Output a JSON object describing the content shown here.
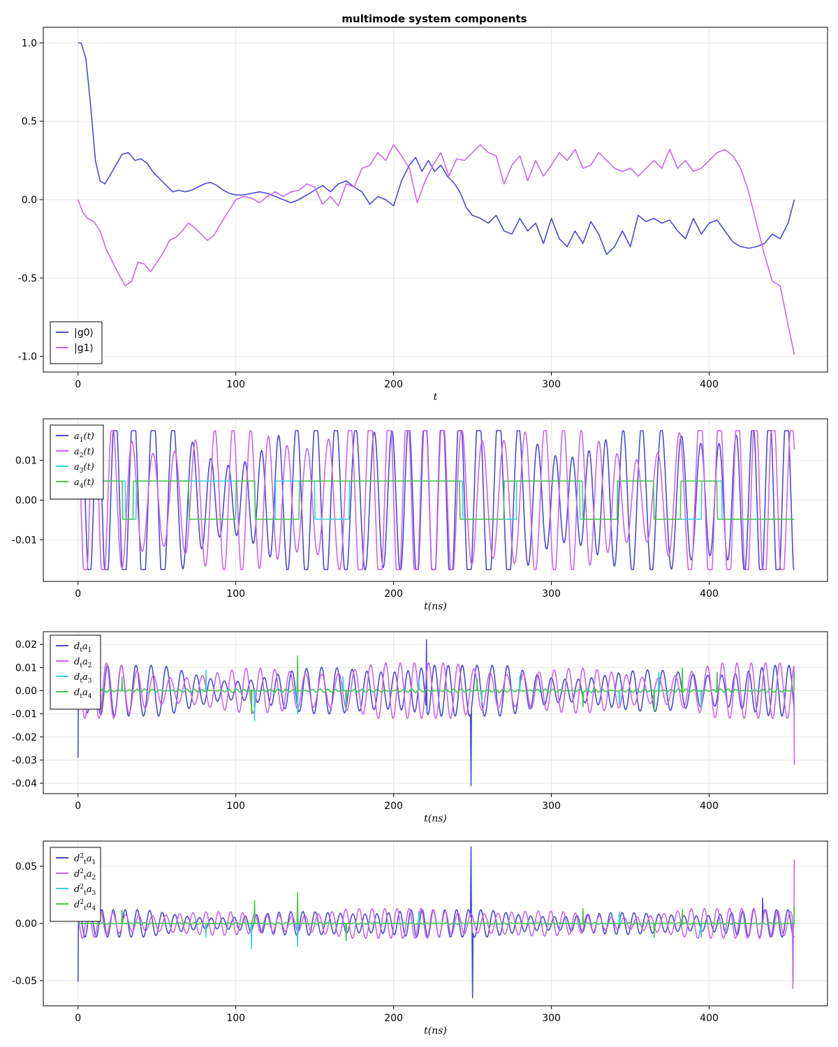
{
  "chart_data": [
    {
      "type": "line",
      "title": "multimode system components",
      "xlabel": "t",
      "xlim": [
        -22,
        475
      ],
      "ylim": [
        -1.1,
        1.1
      ],
      "xticks": [
        0,
        100,
        200,
        300,
        400
      ],
      "yticks": [
        1.0,
        0.5,
        0.0,
        -0.5,
        -1.0
      ],
      "ytick_labels": [
        "1.0",
        "0.5",
        "0.0",
        "-0.5",
        "-1.0"
      ],
      "grid": true,
      "legend_position": "bottom-left",
      "series": [
        {
          "name": "|g0⟩",
          "color": "#4a4ad4",
          "x": [
            0,
            2,
            5,
            8,
            11,
            14,
            17,
            20,
            24,
            28,
            32,
            36,
            40,
            44,
            48,
            52,
            56,
            60,
            64,
            68,
            72,
            76,
            80,
            84,
            88,
            92,
            96,
            100,
            105,
            110,
            115,
            120,
            125,
            130,
            135,
            140,
            145,
            150,
            155,
            160,
            165,
            170,
            175,
            180,
            185,
            190,
            195,
            200,
            205,
            210,
            214,
            218,
            222,
            226,
            230,
            234,
            238,
            242,
            246,
            250,
            255,
            260,
            265,
            270,
            275,
            280,
            285,
            290,
            295,
            300,
            305,
            310,
            315,
            320,
            325,
            330,
            335,
            340,
            345,
            350,
            355,
            360,
            365,
            370,
            375,
            380,
            385,
            390,
            395,
            400,
            405,
            410,
            415,
            420,
            425,
            430,
            435,
            440,
            445,
            450,
            454
          ],
          "y": [
            1.0,
            1.0,
            0.9,
            0.6,
            0.25,
            0.12,
            0.1,
            0.15,
            0.22,
            0.29,
            0.3,
            0.25,
            0.26,
            0.23,
            0.17,
            0.13,
            0.09,
            0.05,
            0.06,
            0.05,
            0.06,
            0.08,
            0.1,
            0.11,
            0.09,
            0.06,
            0.04,
            0.03,
            0.03,
            0.04,
            0.05,
            0.04,
            0.02,
            0.0,
            -0.02,
            0.0,
            0.03,
            0.06,
            0.09,
            0.05,
            0.1,
            0.12,
            0.08,
            0.05,
            -0.03,
            0.02,
            0.0,
            -0.04,
            0.12,
            0.22,
            0.27,
            0.18,
            0.25,
            0.18,
            0.22,
            0.15,
            0.11,
            0.05,
            -0.05,
            -0.1,
            -0.12,
            -0.15,
            -0.1,
            -0.2,
            -0.22,
            -0.12,
            -0.2,
            -0.15,
            -0.28,
            -0.12,
            -0.25,
            -0.3,
            -0.2,
            -0.28,
            -0.14,
            -0.22,
            -0.35,
            -0.3,
            -0.2,
            -0.3,
            -0.1,
            -0.14,
            -0.12,
            -0.15,
            -0.13,
            -0.2,
            -0.25,
            -0.12,
            -0.22,
            -0.15,
            -0.13,
            -0.2,
            -0.27,
            -0.3,
            -0.31,
            -0.3,
            -0.28,
            -0.22,
            -0.25,
            -0.15,
            0.0
          ]
        },
        {
          "name": "|g1⟩",
          "color": "#c766f0",
          "x": [
            0,
            3,
            6,
            10,
            14,
            18,
            22,
            26,
            30,
            34,
            38,
            42,
            46,
            50,
            54,
            58,
            62,
            66,
            70,
            74,
            78,
            82,
            86,
            90,
            95,
            100,
            105,
            110,
            115,
            120,
            125,
            130,
            135,
            140,
            145,
            150,
            155,
            160,
            165,
            170,
            175,
            180,
            185,
            190,
            195,
            200,
            205,
            210,
            215,
            220,
            225,
            230,
            235,
            240,
            245,
            250,
            255,
            260,
            265,
            270,
            275,
            280,
            285,
            290,
            295,
            300,
            305,
            310,
            315,
            320,
            325,
            330,
            335,
            340,
            345,
            350,
            355,
            360,
            365,
            370,
            375,
            380,
            385,
            390,
            395,
            400,
            405,
            410,
            415,
            420,
            425,
            430,
            435,
            440,
            445,
            450,
            454
          ],
          "y": [
            0.0,
            -0.08,
            -0.12,
            -0.14,
            -0.2,
            -0.32,
            -0.4,
            -0.48,
            -0.55,
            -0.52,
            -0.4,
            -0.41,
            -0.46,
            -0.4,
            -0.34,
            -0.26,
            -0.24,
            -0.2,
            -0.15,
            -0.18,
            -0.22,
            -0.26,
            -0.23,
            -0.16,
            -0.08,
            0.0,
            0.02,
            0.01,
            -0.02,
            0.02,
            0.05,
            0.02,
            0.05,
            0.06,
            0.1,
            0.08,
            -0.03,
            0.02,
            -0.04,
            0.1,
            0.08,
            0.2,
            0.22,
            0.3,
            0.25,
            0.35,
            0.28,
            0.2,
            -0.02,
            0.12,
            0.22,
            0.3,
            0.15,
            0.26,
            0.25,
            0.3,
            0.35,
            0.3,
            0.28,
            0.1,
            0.22,
            0.28,
            0.12,
            0.25,
            0.15,
            0.22,
            0.3,
            0.25,
            0.32,
            0.2,
            0.22,
            0.3,
            0.25,
            0.2,
            0.18,
            0.2,
            0.15,
            0.2,
            0.25,
            0.2,
            0.32,
            0.2,
            0.25,
            0.18,
            0.2,
            0.25,
            0.3,
            0.32,
            0.28,
            0.2,
            0.05,
            -0.15,
            -0.35,
            -0.52,
            -0.55,
            -0.8,
            -0.99
          ]
        }
      ]
    },
    {
      "type": "line",
      "xlabel": "t(ns)",
      "xlim": [
        -22,
        475
      ],
      "ylim": [
        -0.0205,
        0.0205
      ],
      "xticks": [
        0,
        100,
        200,
        300,
        400
      ],
      "yticks": [
        0.01,
        0.0,
        -0.01
      ],
      "ytick_labels": [
        "0.01",
        "0.00",
        "-0.01"
      ],
      "grid": true,
      "legend_position": "top-left",
      "series": [
        {
          "name": "a1(t)",
          "label_main": "a",
          "label_sub": "1",
          "label_tail": "(t)",
          "color": "#4a4ad4",
          "kind": "osc",
          "amp": 0.0175,
          "period": 11.5,
          "phase": 0.4
        },
        {
          "name": "a2(t)",
          "label_main": "a",
          "label_sub": "2",
          "label_tail": "(t)",
          "color": "#c766f0",
          "kind": "osc",
          "amp": 0.0175,
          "period": 12.3,
          "phase": 2.1
        },
        {
          "name": "a3(t)",
          "label_main": "a",
          "label_sub": "3",
          "label_tail": "(t)",
          "color": "#40d0d8",
          "kind": "step",
          "level": 0.0048,
          "segments": [
            [
              0,
              30,
              1
            ],
            [
              30,
              37,
              -1
            ],
            [
              37,
              70,
              1
            ],
            [
              70,
              112,
              1
            ],
            [
              112,
              125,
              -1
            ],
            [
              125,
              150,
              1
            ],
            [
              150,
              172,
              -1
            ],
            [
              172,
              244,
              1
            ],
            [
              244,
              278,
              -1
            ],
            [
              278,
              318,
              1
            ],
            [
              318,
              342,
              -1
            ],
            [
              342,
              365,
              1
            ],
            [
              365,
              395,
              -1
            ],
            [
              395,
              408,
              1
            ],
            [
              408,
              454,
              -1
            ]
          ]
        },
        {
          "name": "a4(t)",
          "label_main": "a",
          "label_sub": "4",
          "label_tail": "(t)",
          "color": "#4dc74d",
          "kind": "step",
          "level": 0.0048,
          "segments": [
            [
              0,
              28,
              1
            ],
            [
              28,
              35,
              -1
            ],
            [
              35,
              70,
              1
            ],
            [
              70,
              100,
              -1
            ],
            [
              100,
              112,
              1
            ],
            [
              112,
              140,
              -1
            ],
            [
              140,
              170,
              1
            ],
            [
              170,
              200,
              1
            ],
            [
              200,
              242,
              1
            ],
            [
              242,
              270,
              -1
            ],
            [
              270,
              320,
              1
            ],
            [
              320,
              342,
              -1
            ],
            [
              342,
              365,
              1
            ],
            [
              365,
              382,
              -1
            ],
            [
              382,
              405,
              1
            ],
            [
              405,
              454,
              -1
            ]
          ]
        }
      ]
    },
    {
      "type": "line",
      "xlabel": "t(ns)",
      "xlim": [
        -22,
        475
      ],
      "ylim": [
        -0.0445,
        0.0255
      ],
      "xticks": [
        0,
        100,
        200,
        300,
        400
      ],
      "yticks": [
        0.02,
        0.01,
        0.0,
        -0.01,
        -0.02,
        -0.03,
        -0.04
      ],
      "ytick_labels": [
        "0.02",
        "0.01",
        "0.00",
        "-0.01",
        "-0.02",
        "-0.03",
        "-0.04"
      ],
      "grid": true,
      "legend_position": "top-left",
      "series": [
        {
          "name": "dt a1",
          "label_main": "d",
          "label_sub": "t",
          "label_tail": "a",
          "label_sub2": "1",
          "color": "#4a4ad4",
          "kind": "osc",
          "amp": 0.011,
          "period": 9.0,
          "phase": 0.3,
          "spikes": [
            [
              0,
              -0.029
            ],
            [
              249,
              -0.041
            ],
            [
              221,
              0.022
            ]
          ]
        },
        {
          "name": "dt a2",
          "label_main": "d",
          "label_sub": "t",
          "label_tail": "a",
          "label_sub2": "2",
          "color": "#c766f0",
          "kind": "osc",
          "amp": 0.012,
          "period": 9.7,
          "phase": 1.7,
          "spikes": [
            [
              454,
              -0.032
            ]
          ]
        },
        {
          "name": "dt a3",
          "label_main": "d",
          "label_sub": "t",
          "label_tail": "a",
          "label_sub2": "3",
          "color": "#40d0d8",
          "kind": "spiky",
          "amp": 0.003,
          "spikes": [
            [
              81,
              0.009
            ],
            [
              112,
              -0.013
            ],
            [
              139,
              -0.01
            ],
            [
              168,
              0.006
            ],
            [
              216,
              0.005
            ],
            [
              256,
              -0.005
            ],
            [
              280,
              0.006
            ],
            [
              343,
              -0.006
            ],
            [
              368,
              0.008
            ],
            [
              395,
              -0.007
            ]
          ]
        },
        {
          "name": "dt a4",
          "label_main": "d",
          "label_sub": "t",
          "label_tail": "a",
          "label_sub2": "4",
          "color": "#4dc74d",
          "kind": "spiky",
          "amp": 0.003,
          "spikes": [
            [
              28,
              0.006
            ],
            [
              110,
              -0.01
            ],
            [
              139,
              0.015
            ],
            [
              170,
              -0.008
            ],
            [
              253,
              0.005
            ],
            [
              320,
              -0.007
            ],
            [
              365,
              -0.009
            ],
            [
              383,
              0.01
            ],
            [
              405,
              0.008
            ],
            [
              454,
              0.008
            ]
          ]
        }
      ]
    },
    {
      "type": "line",
      "xlabel": "t(ns)",
      "xlim": [
        -22,
        475
      ],
      "ylim": [
        -0.072,
        0.072
      ],
      "xticks": [
        0,
        100,
        200,
        300,
        400
      ],
      "yticks": [
        0.05,
        0.0,
        -0.05
      ],
      "ytick_labels": [
        "0.05",
        "0.00",
        "-0.05"
      ],
      "grid": true,
      "legend_position": "top-left",
      "series": [
        {
          "name": "dt2 a1",
          "label_main": "d",
          "label_sub": "t",
          "label_sup": "2",
          "label_tail": "a",
          "label_sub2": "1",
          "color": "#4a4ad4",
          "kind": "osc",
          "amp": 0.012,
          "period": 7.5,
          "phase": 0.8,
          "spikes": [
            [
              0,
              -0.051
            ],
            [
              249,
              0.067
            ],
            [
              250,
              -0.065
            ],
            [
              434,
              0.022
            ]
          ]
        },
        {
          "name": "dt2 a2",
          "label_main": "d",
          "label_sub": "t",
          "label_sup": "2",
          "label_tail": "a",
          "label_sub2": "2",
          "color": "#c766f0",
          "kind": "osc",
          "amp": 0.013,
          "period": 8.1,
          "phase": 2.4,
          "spikes": [
            [
              453,
              -0.057
            ],
            [
              454,
              0.056
            ]
          ]
        },
        {
          "name": "dt2 a3",
          "label_main": "d",
          "label_sub": "t",
          "label_sup": "2",
          "label_tail": "a",
          "label_sub2": "3",
          "color": "#40d0d8",
          "kind": "spiky",
          "amp": 0.003,
          "spikes": [
            [
              81,
              -0.012
            ],
            [
              110,
              -0.022
            ],
            [
              139,
              -0.02
            ],
            [
              216,
              0.01
            ],
            [
              343,
              0.01
            ],
            [
              395,
              -0.012
            ]
          ]
        },
        {
          "name": "dt2 a4",
          "label_main": "d",
          "label_sub": "t",
          "label_sup": "2",
          "label_tail": "a",
          "label_sub2": "4",
          "color": "#4dc74d",
          "kind": "spiky",
          "amp": 0.003,
          "spikes": [
            [
              28,
              0.012
            ],
            [
              112,
              0.02
            ],
            [
              139,
              0.027
            ],
            [
              170,
              -0.015
            ],
            [
              320,
              0.013
            ],
            [
              365,
              -0.012
            ],
            [
              383,
              0.012
            ],
            [
              454,
              0.015
            ]
          ]
        }
      ]
    }
  ]
}
